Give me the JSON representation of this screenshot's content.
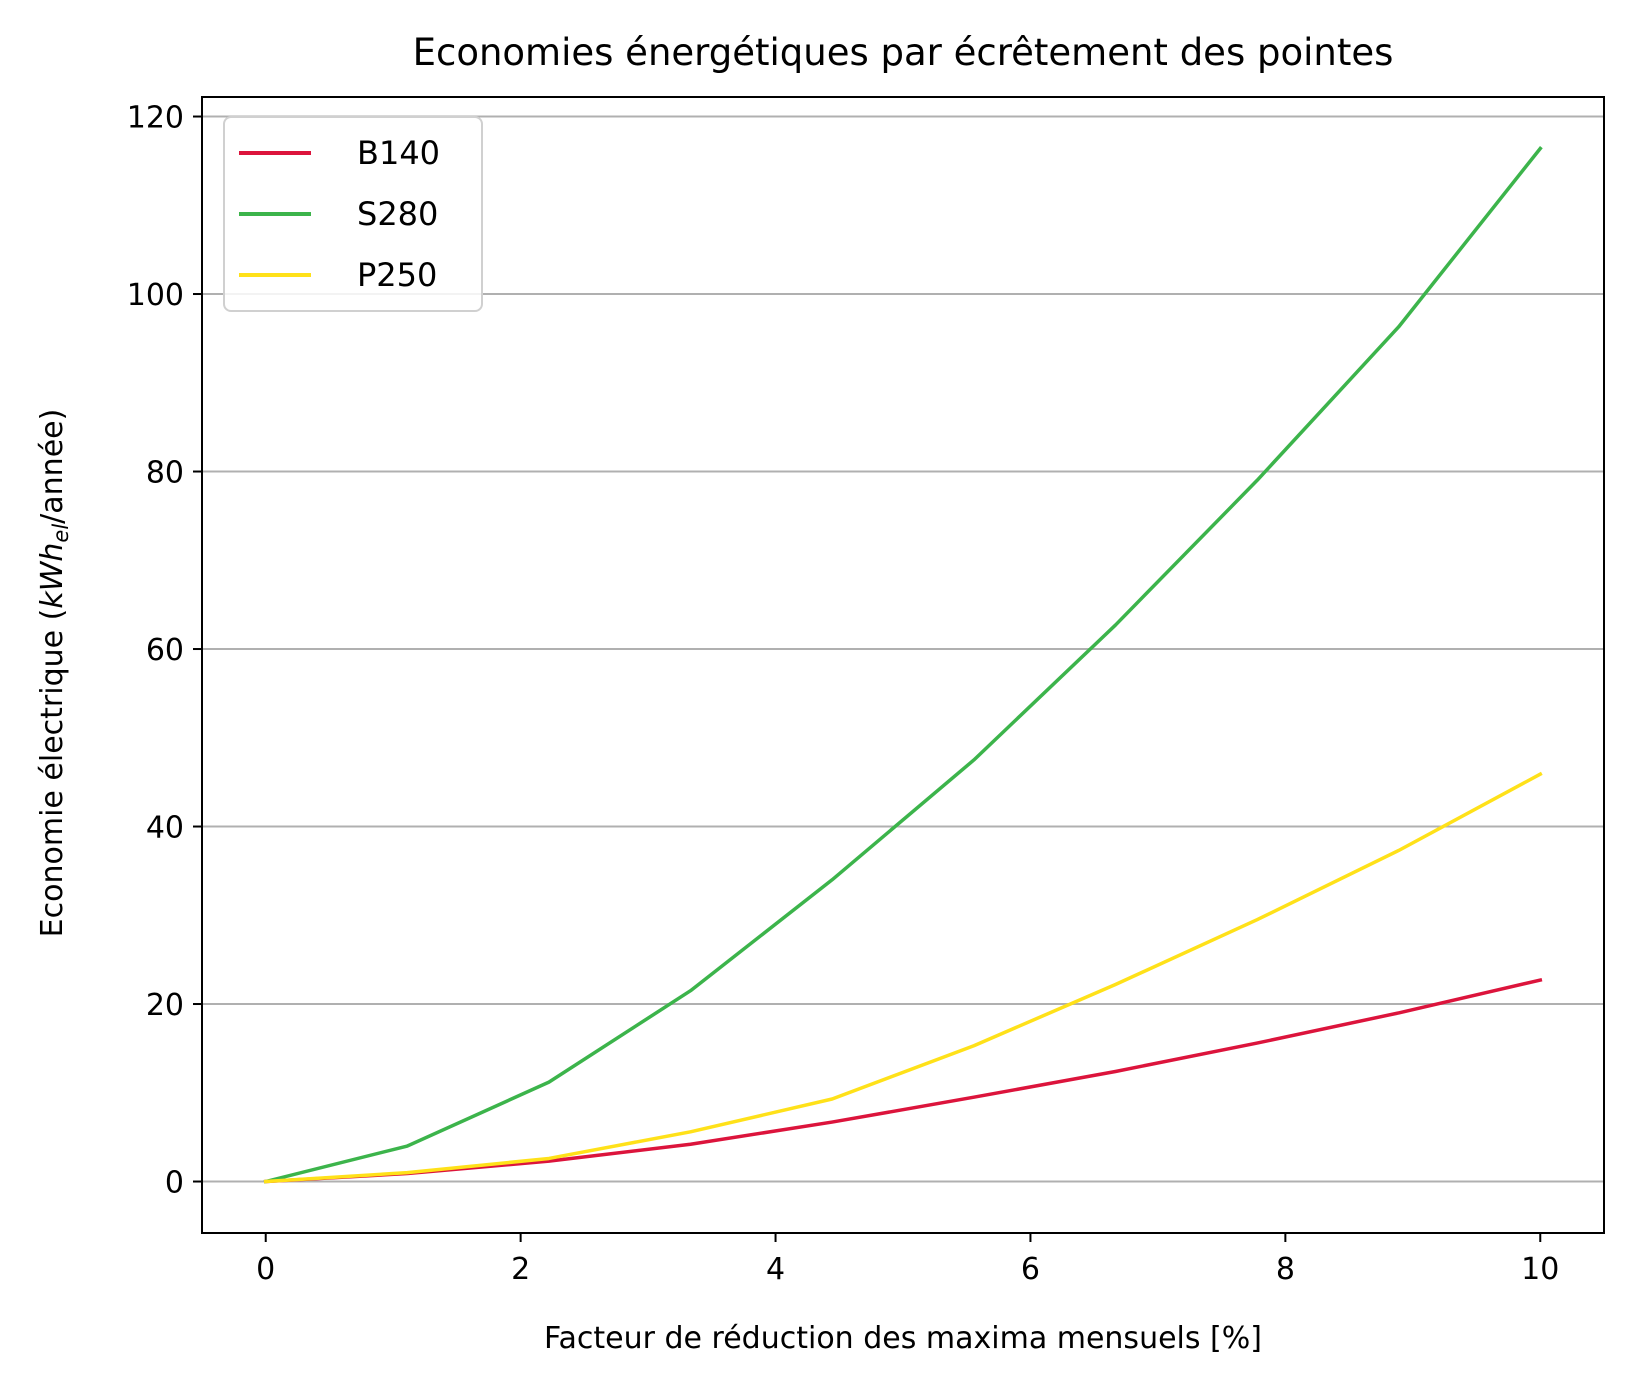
{
  "chart_data": {
    "type": "line",
    "title": "Economies énergétiques par écrêtement des pointes",
    "xlabel": "Facteur de réduction des maxima mensuels [%]",
    "ylabel": {
      "prefix": "Economie électrique (",
      "math_main": "kWh",
      "math_sub": "el",
      "suffix": "/année)"
    },
    "xlim": [
      -0.5,
      10.5
    ],
    "ylim": [
      -5.8,
      122.2
    ],
    "xticks": [
      0,
      2,
      4,
      6,
      8,
      10
    ],
    "yticks": [
      0,
      20,
      40,
      60,
      80,
      100,
      120
    ],
    "grid": "y",
    "legend_position": "top-left",
    "x": [
      0,
      1.111,
      2.222,
      3.333,
      4.444,
      5.556,
      6.667,
      7.778,
      8.889,
      10
    ],
    "series": [
      {
        "name": "B140",
        "color": "#dc143c",
        "values": [
          0,
          0.9,
          2.3,
          4.2,
          6.7,
          9.5,
          12.4,
          15.6,
          19,
          22.7
        ]
      },
      {
        "name": "S280",
        "color": "#3cb44b",
        "values": [
          0,
          4,
          11.2,
          21.5,
          34,
          47.5,
          62.7,
          79,
          96.3,
          116.4
        ]
      },
      {
        "name": "P250",
        "color": "#ffe119",
        "values": [
          0,
          1,
          2.6,
          5.6,
          9.3,
          15.3,
          22.2,
          29.5,
          37.3,
          45.9
        ]
      }
    ]
  }
}
